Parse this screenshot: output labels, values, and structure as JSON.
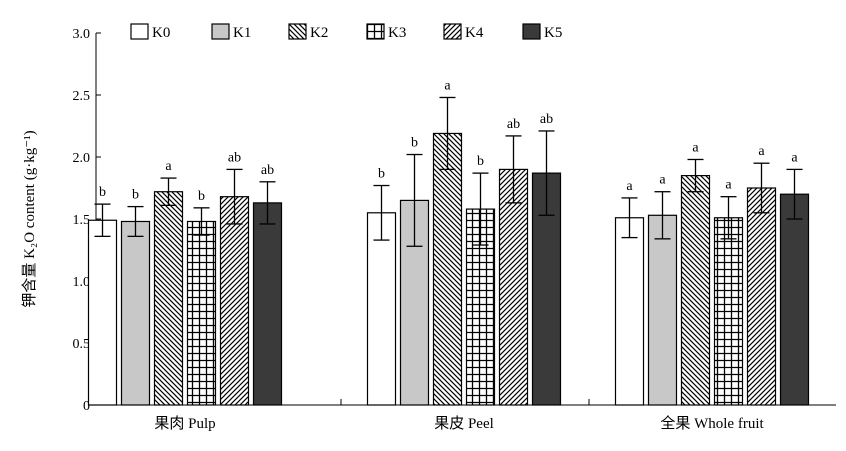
{
  "chart_data": {
    "type": "bar",
    "ylabel": "钾含量 K₂O content (g·kg⁻¹)",
    "ylim": [
      0,
      3.0
    ],
    "yticks": [
      "0",
      "0.5",
      "1.0",
      "1.5",
      "2.0",
      "2.5",
      "3.0"
    ],
    "categories": [
      "果肉 Pulp",
      "果皮 Peel",
      "全果 Whole fruit"
    ],
    "legend_position": "top",
    "series": [
      {
        "name": "K0",
        "pattern": "white",
        "values": [
          1.49,
          1.55,
          1.51
        ],
        "errors": [
          0.13,
          0.22,
          0.16
        ],
        "labels": [
          "b",
          "b",
          "a"
        ]
      },
      {
        "name": "K1",
        "pattern": "lightgray",
        "values": [
          1.48,
          1.65,
          1.53
        ],
        "errors": [
          0.12,
          0.37,
          0.19
        ],
        "labels": [
          "b",
          "b",
          "a"
        ]
      },
      {
        "name": "K2",
        "pattern": "diag-back",
        "values": [
          1.72,
          2.19,
          1.85
        ],
        "errors": [
          0.11,
          0.29,
          0.13
        ],
        "labels": [
          "a",
          "a",
          "a"
        ]
      },
      {
        "name": "K3",
        "pattern": "grid",
        "values": [
          1.48,
          1.58,
          1.51
        ],
        "errors": [
          0.11,
          0.29,
          0.17
        ],
        "labels": [
          "b",
          "b",
          "a"
        ]
      },
      {
        "name": "K4",
        "pattern": "diag-fwd",
        "values": [
          1.68,
          1.9,
          1.75
        ],
        "errors": [
          0.22,
          0.27,
          0.2
        ],
        "labels": [
          "ab",
          "ab",
          "a"
        ]
      },
      {
        "name": "K5",
        "pattern": "dark",
        "values": [
          1.63,
          1.87,
          1.7
        ],
        "errors": [
          0.17,
          0.34,
          0.2
        ],
        "labels": [
          "ab",
          "ab",
          "a"
        ]
      }
    ]
  },
  "colors": {
    "dark": "#3a3a3a",
    "lightgray": "#c8c8c8",
    "stroke": "#000000"
  }
}
